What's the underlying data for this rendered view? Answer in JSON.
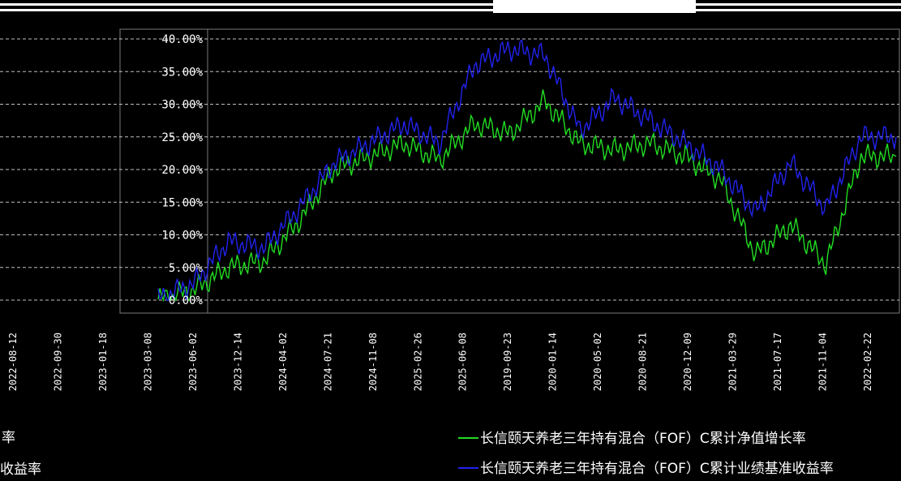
{
  "chart_data": {
    "type": "line",
    "title": "",
    "xlabel": "",
    "ylabel": "",
    "ylim": [
      0,
      40
    ],
    "y_ticks": [
      "0.00%",
      "5.00%",
      "10.00%",
      "15.00%",
      "20.00%",
      "25.00%",
      "30.00%",
      "35.00%",
      "40.00%"
    ],
    "x_tick_labels": [
      "2022-08-12",
      "2022-09-30",
      "2023-01-18",
      "2023-03-08",
      "2023-06-02",
      "2023-12-14",
      "2024-04-02",
      "2024-07-21",
      "2024-11-08",
      "2025-02-26",
      "2025-06-08",
      "2019-09-23",
      "2020-01-14",
      "2020-05-02",
      "2020-08-21",
      "2020-12-09",
      "2021-03-29",
      "2021-07-17",
      "2021-11-04",
      "2022-02-22"
    ],
    "grid": true,
    "legend_position": "bottom-right",
    "series": [
      {
        "name": "长信颐天养老三年持有混合（FOF）C累计净值增长率",
        "color": "#22dd22",
        "values": [
          0.1,
          1.5,
          5.0,
          6.0,
          12.0,
          20.0,
          22.0,
          24.0,
          21.5,
          27.0,
          25.5,
          30.5,
          24.0,
          23.0,
          24.0,
          22.0,
          18.5,
          7.0,
          11.5,
          5.5,
          22.0,
          22.0
        ]
      },
      {
        "name": "长信颐天养老三年持有混合（FOF）C累计业绩基准收益率",
        "color": "#2222ee",
        "values": [
          0.2,
          2.5,
          9.0,
          8.0,
          14.0,
          21.0,
          24.0,
          27.0,
          24.0,
          36.0,
          38.5,
          37.5,
          26.0,
          31.0,
          27.5,
          24.0,
          20.0,
          13.5,
          21.0,
          14.0,
          25.0,
          25.0
        ]
      }
    ]
  },
  "legend_items": [
    "长信颐天养老三年持有混合（FOF）C累计净值增长率",
    "长信颐天养老三年持有混合（FOF）C累计业绩基准收益率"
  ],
  "left_labels": [
    "率",
    "收益率"
  ]
}
